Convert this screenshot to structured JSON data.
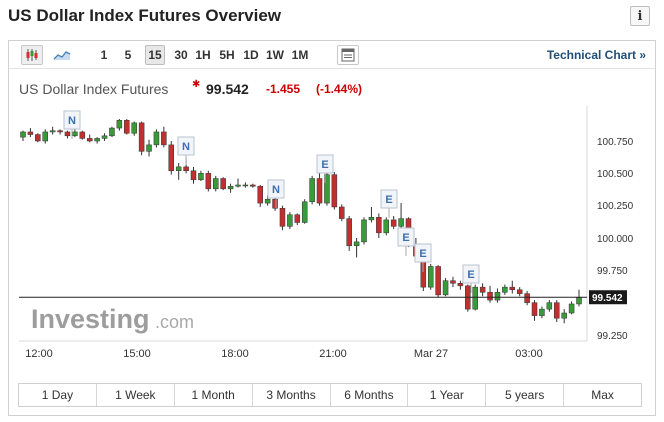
{
  "header": {
    "title": "US Dollar Index Futures Overview",
    "info_icon": "i"
  },
  "toolbar": {
    "icons": [
      "candlestick-chart-icon",
      "area-chart-icon",
      "table-view-icon"
    ],
    "intervals": [
      {
        "label": "1",
        "selected": false
      },
      {
        "label": "5",
        "selected": false
      },
      {
        "label": "15",
        "selected": true
      },
      {
        "label": "30",
        "selected": false
      },
      {
        "label": "1H",
        "selected": false
      },
      {
        "label": "5H",
        "selected": false
      },
      {
        "label": "1D",
        "selected": false
      },
      {
        "label": "1W",
        "selected": false
      },
      {
        "label": "1M",
        "selected": false
      }
    ],
    "technical_chart_label": "Technical Chart »"
  },
  "instrument": {
    "name": "US Dollar Index Futures",
    "price": "99.542",
    "change": "-1.455",
    "change_pct": "(-1.44%)",
    "down_color": "#cc0000"
  },
  "watermark": {
    "brand": "Investing",
    "suffix": ".com"
  },
  "chart_data": {
    "type": "candlestick",
    "y_ticks": [
      "100.750",
      "100.500",
      "100.250",
      "100.000",
      "99.750",
      "99.250"
    ],
    "ylim": [
      99.2,
      100.95
    ],
    "x_ticks": [
      "12:00",
      "15:00",
      "18:00",
      "21:00",
      "Mar 27",
      "03:00"
    ],
    "current_price_label": "99.542",
    "current_price": 99.542,
    "event_markers": [
      "N",
      "N",
      "N",
      "E",
      "E",
      "E",
      "E",
      "E"
    ],
    "up_color": "#3a9a3a",
    "down_color": "#c03030",
    "candles": [
      [
        100.78,
        100.83,
        100.75,
        100.82
      ],
      [
        100.82,
        100.85,
        100.78,
        100.8
      ],
      [
        100.8,
        100.81,
        100.74,
        100.75
      ],
      [
        100.75,
        100.84,
        100.73,
        100.82
      ],
      [
        100.82,
        100.86,
        100.8,
        100.83
      ],
      [
        100.83,
        100.84,
        100.8,
        100.82
      ],
      [
        100.82,
        100.83,
        100.77,
        100.79
      ],
      [
        100.79,
        100.84,
        100.78,
        100.82
      ],
      [
        100.82,
        100.83,
        100.76,
        100.77
      ],
      [
        100.77,
        100.8,
        100.74,
        100.75
      ],
      [
        100.75,
        100.78,
        100.73,
        100.77
      ],
      [
        100.77,
        100.81,
        100.75,
        100.79
      ],
      [
        100.79,
        100.86,
        100.78,
        100.85
      ],
      [
        100.85,
        100.92,
        100.83,
        100.91
      ],
      [
        100.91,
        100.92,
        100.8,
        100.81
      ],
      [
        100.81,
        100.9,
        100.79,
        100.89
      ],
      [
        100.89,
        100.9,
        100.64,
        100.67
      ],
      [
        100.67,
        100.76,
        100.63,
        100.72
      ],
      [
        100.72,
        100.84,
        100.7,
        100.82
      ],
      [
        100.82,
        100.86,
        100.7,
        100.72
      ],
      [
        100.72,
        100.75,
        100.49,
        100.52
      ],
      [
        100.52,
        100.58,
        100.45,
        100.55
      ],
      [
        100.55,
        100.62,
        100.5,
        100.52
      ],
      [
        100.52,
        100.55,
        100.42,
        100.45
      ],
      [
        100.45,
        100.52,
        100.44,
        100.5
      ],
      [
        100.5,
        100.52,
        100.36,
        100.38
      ],
      [
        100.38,
        100.48,
        100.36,
        100.46
      ],
      [
        100.46,
        100.47,
        100.37,
        100.38
      ],
      [
        100.38,
        100.42,
        100.35,
        100.4
      ],
      [
        100.4,
        100.46,
        100.39,
        100.41
      ],
      [
        100.41,
        100.43,
        100.39,
        100.41
      ],
      [
        100.41,
        100.42,
        100.39,
        100.4
      ],
      [
        100.4,
        100.41,
        100.24,
        100.27
      ],
      [
        100.27,
        100.33,
        100.25,
        100.3
      ],
      [
        100.3,
        100.31,
        100.21,
        100.23
      ],
      [
        100.23,
        100.25,
        100.06,
        100.09
      ],
      [
        100.09,
        100.2,
        100.07,
        100.18
      ],
      [
        100.18,
        100.19,
        100.1,
        100.12
      ],
      [
        100.12,
        100.3,
        100.11,
        100.28
      ],
      [
        100.28,
        100.48,
        100.26,
        100.46
      ],
      [
        100.46,
        100.5,
        100.25,
        100.27
      ],
      [
        100.27,
        100.51,
        100.25,
        100.49
      ],
      [
        100.49,
        100.51,
        100.22,
        100.24
      ],
      [
        100.24,
        100.26,
        100.13,
        100.15
      ],
      [
        100.15,
        100.17,
        99.9,
        99.94
      ],
      [
        99.94,
        100.0,
        99.85,
        99.97
      ],
      [
        99.97,
        100.16,
        99.95,
        100.14
      ],
      [
        100.14,
        100.24,
        100.12,
        100.16
      ],
      [
        100.16,
        100.19,
        100.0,
        100.04
      ],
      [
        100.04,
        100.16,
        100.02,
        100.14
      ],
      [
        100.14,
        100.17,
        100.07,
        100.09
      ],
      [
        100.09,
        100.27,
        100.07,
        100.15
      ],
      [
        100.15,
        100.16,
        99.93,
        99.95
      ],
      [
        99.95,
        100.0,
        99.84,
        99.86
      ],
      [
        99.86,
        99.9,
        99.59,
        99.62
      ],
      [
        99.62,
        99.8,
        99.6,
        99.78
      ],
      [
        99.78,
        99.79,
        99.54,
        99.56
      ],
      [
        99.56,
        99.69,
        99.55,
        99.67
      ],
      [
        99.67,
        99.7,
        99.62,
        99.65
      ],
      [
        99.65,
        99.67,
        99.6,
        99.63
      ],
      [
        99.63,
        99.64,
        99.43,
        99.45
      ],
      [
        99.45,
        99.64,
        99.44,
        99.62
      ],
      [
        99.62,
        99.65,
        99.55,
        99.58
      ],
      [
        99.58,
        99.63,
        99.5,
        99.52
      ],
      [
        99.52,
        99.61,
        99.5,
        99.58
      ],
      [
        99.58,
        99.64,
        99.56,
        99.62
      ],
      [
        99.62,
        99.67,
        99.57,
        99.6
      ],
      [
        99.6,
        99.62,
        99.55,
        99.57
      ],
      [
        99.57,
        99.59,
        99.48,
        99.5
      ],
      [
        99.5,
        99.52,
        99.36,
        99.4
      ],
      [
        99.4,
        99.47,
        99.38,
        99.45
      ],
      [
        99.45,
        99.52,
        99.43,
        99.5
      ],
      [
        99.5,
        99.52,
        99.35,
        99.38
      ],
      [
        99.38,
        99.45,
        99.34,
        99.42
      ],
      [
        99.42,
        99.51,
        99.41,
        99.49
      ],
      [
        99.49,
        99.6,
        99.47,
        99.54
      ]
    ]
  },
  "range_buttons": [
    "1 Day",
    "1 Week",
    "1 Month",
    "3 Months",
    "6 Months",
    "1 Year",
    "5 years",
    "Max"
  ]
}
